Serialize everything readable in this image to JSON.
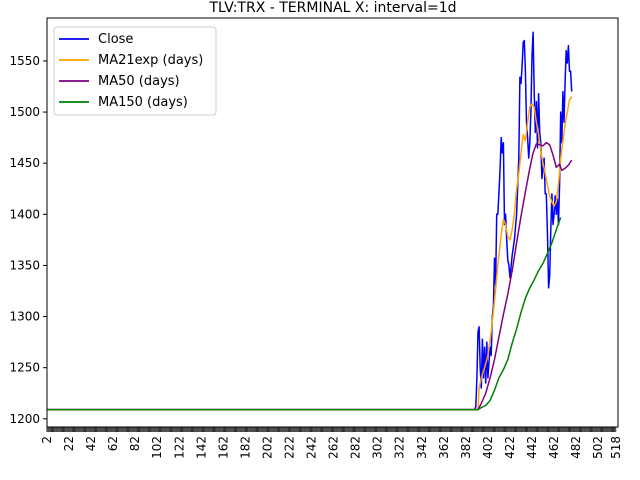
{
  "chart_data": {
    "type": "line",
    "title": "TLV:TRX - TERMINAL X: interval=1d",
    "xlabel": "",
    "ylabel": "",
    "xlim": [
      2,
      520
    ],
    "ylim": [
      1192,
      1592
    ],
    "x_ticks": [
      2,
      22,
      42,
      62,
      82,
      102,
      122,
      142,
      162,
      182,
      202,
      222,
      242,
      262,
      282,
      302,
      322,
      342,
      362,
      382,
      402,
      422,
      442,
      462,
      482,
      502,
      518
    ],
    "y_ticks": [
      1200,
      1250,
      1300,
      1350,
      1400,
      1450,
      1500,
      1550
    ],
    "grid": false,
    "legend_position": "top-left",
    "series": [
      {
        "name": "Close",
        "color": "#0000ff",
        "points": [
          [
            2,
            1209
          ],
          [
            390,
            1209
          ],
          [
            391,
            1212
          ],
          [
            392,
            1240
          ],
          [
            393,
            1285
          ],
          [
            394,
            1290
          ],
          [
            395,
            1250
          ],
          [
            396,
            1230
          ],
          [
            397,
            1278
          ],
          [
            398,
            1240
          ],
          [
            399,
            1270
          ],
          [
            400,
            1235
          ],
          [
            401,
            1275
          ],
          [
            402,
            1240
          ],
          [
            404,
            1270
          ],
          [
            405,
            1262
          ],
          [
            406,
            1300
          ],
          [
            407,
            1310
          ],
          [
            408,
            1357
          ],
          [
            409,
            1330
          ],
          [
            410,
            1400
          ],
          [
            411,
            1400
          ],
          [
            412,
            1420
          ],
          [
            413,
            1445
          ],
          [
            414,
            1475
          ],
          [
            415,
            1460
          ],
          [
            416,
            1470
          ],
          [
            417,
            1390
          ],
          [
            418,
            1400
          ],
          [
            419,
            1375
          ],
          [
            420,
            1355
          ],
          [
            421,
            1350
          ],
          [
            422,
            1338
          ],
          [
            424,
            1360
          ],
          [
            426,
            1375
          ],
          [
            428,
            1400
          ],
          [
            430,
            1455
          ],
          [
            431,
            1534
          ],
          [
            432,
            1528
          ],
          [
            433,
            1545
          ],
          [
            434,
            1568
          ],
          [
            435,
            1570
          ],
          [
            436,
            1540
          ],
          [
            437,
            1490
          ],
          [
            438,
            1475
          ],
          [
            439,
            1455
          ],
          [
            440,
            1470
          ],
          [
            441,
            1500
          ],
          [
            442,
            1555
          ],
          [
            443,
            1578
          ],
          [
            444,
            1520
          ],
          [
            445,
            1480
          ],
          [
            446,
            1510
          ],
          [
            447,
            1465
          ],
          [
            448,
            1518
          ],
          [
            449,
            1480
          ],
          [
            450,
            1470
          ],
          [
            451,
            1435
          ],
          [
            452,
            1445
          ],
          [
            453,
            1455
          ],
          [
            454,
            1420
          ],
          [
            455,
            1420
          ],
          [
            456,
            1380
          ],
          [
            457,
            1328
          ],
          [
            458,
            1340
          ],
          [
            459,
            1385
          ],
          [
            460,
            1420
          ],
          [
            461,
            1390
          ],
          [
            462,
            1400
          ],
          [
            463,
            1418
          ],
          [
            464,
            1400
          ],
          [
            465,
            1415
          ],
          [
            466,
            1390
          ],
          [
            467,
            1430
          ],
          [
            468,
            1500
          ],
          [
            469,
            1470
          ],
          [
            470,
            1520
          ],
          [
            471,
            1490
          ],
          [
            472,
            1530
          ],
          [
            473,
            1560
          ],
          [
            474,
            1548
          ],
          [
            475,
            1565
          ],
          [
            476,
            1540
          ],
          [
            477,
            1540
          ],
          [
            478,
            1520
          ]
        ]
      },
      {
        "name": "MA21exp (days)",
        "color": "#ffa500",
        "points": [
          [
            2,
            1209
          ],
          [
            393,
            1209
          ],
          [
            394,
            1230
          ],
          [
            396,
            1240
          ],
          [
            399,
            1250
          ],
          [
            402,
            1262
          ],
          [
            405,
            1285
          ],
          [
            408,
            1315
          ],
          [
            411,
            1350
          ],
          [
            414,
            1380
          ],
          [
            416,
            1395
          ],
          [
            418,
            1390
          ],
          [
            420,
            1378
          ],
          [
            422,
            1375
          ],
          [
            424,
            1385
          ],
          [
            426,
            1400
          ],
          [
            428,
            1425
          ],
          [
            430,
            1440
          ],
          [
            432,
            1460
          ],
          [
            434,
            1478
          ],
          [
            436,
            1472
          ],
          [
            438,
            1490
          ],
          [
            440,
            1505
          ],
          [
            442,
            1508
          ],
          [
            444,
            1505
          ],
          [
            446,
            1490
          ],
          [
            448,
            1478
          ],
          [
            450,
            1462
          ],
          [
            452,
            1450
          ],
          [
            454,
            1440
          ],
          [
            456,
            1428
          ],
          [
            458,
            1418
          ],
          [
            460,
            1412
          ],
          [
            462,
            1408
          ],
          [
            464,
            1412
          ],
          [
            466,
            1430
          ],
          [
            468,
            1455
          ],
          [
            470,
            1472
          ],
          [
            472,
            1488
          ],
          [
            474,
            1500
          ],
          [
            476,
            1512
          ],
          [
            478,
            1515
          ]
        ]
      },
      {
        "name": "MA50 (days)",
        "color": "#800080",
        "points": [
          [
            2,
            1209
          ],
          [
            393,
            1209
          ],
          [
            396,
            1215
          ],
          [
            400,
            1225
          ],
          [
            404,
            1240
          ],
          [
            408,
            1258
          ],
          [
            412,
            1280
          ],
          [
            416,
            1302
          ],
          [
            420,
            1322
          ],
          [
            424,
            1345
          ],
          [
            428,
            1372
          ],
          [
            432,
            1398
          ],
          [
            436,
            1422
          ],
          [
            440,
            1445
          ],
          [
            443,
            1460
          ],
          [
            446,
            1469
          ],
          [
            449,
            1468
          ],
          [
            452,
            1467
          ],
          [
            455,
            1470
          ],
          [
            458,
            1468
          ],
          [
            461,
            1458
          ],
          [
            464,
            1446
          ],
          [
            467,
            1449
          ],
          [
            469,
            1443
          ],
          [
            472,
            1445
          ],
          [
            475,
            1448
          ],
          [
            478,
            1453
          ]
        ]
      },
      {
        "name": "MA150 (days)",
        "color": "#008000",
        "points": [
          [
            2,
            1209
          ],
          [
            393,
            1209
          ],
          [
            396,
            1211
          ],
          [
            400,
            1213
          ],
          [
            404,
            1218
          ],
          [
            408,
            1228
          ],
          [
            412,
            1240
          ],
          [
            416,
            1248
          ],
          [
            420,
            1258
          ],
          [
            424,
            1274
          ],
          [
            428,
            1288
          ],
          [
            432,
            1304
          ],
          [
            436,
            1318
          ],
          [
            440,
            1328
          ],
          [
            444,
            1336
          ],
          [
            448,
            1345
          ],
          [
            452,
            1352
          ],
          [
            456,
            1362
          ],
          [
            460,
            1372
          ],
          [
            464,
            1385
          ],
          [
            468,
            1397
          ]
        ]
      }
    ]
  }
}
